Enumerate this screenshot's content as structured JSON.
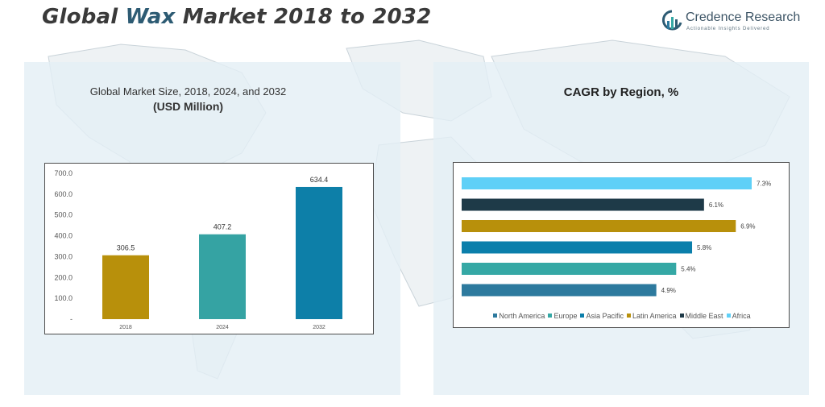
{
  "header": {
    "title_pre": "Global ",
    "title_accent": "Wax",
    "title_post": " Market 2018 to 2032"
  },
  "logo": {
    "name": "Credence Research",
    "tagline": "Actionable Insights Delivered"
  },
  "colors": {
    "title": "#3a3a3a",
    "title_accent": "#2d5b73",
    "panel_bg": "#e3eff5"
  },
  "chart_data": [
    {
      "type": "bar",
      "title": "Global Market Size, 2018, 2024, and 2032",
      "subtitle": "(USD Million)",
      "categories": [
        "2018",
        "2024",
        "2032"
      ],
      "values": [
        306.5,
        407.2,
        634.4
      ],
      "value_labels": [
        "306.5",
        "407.2",
        "634.4"
      ],
      "colors": [
        "#b8900b",
        "#35a3a3",
        "#0d7fa8"
      ],
      "ylim": [
        0,
        700
      ],
      "yticks": [
        0,
        100,
        200,
        300,
        400,
        500,
        600,
        700
      ],
      "ytick_labels": [
        "-",
        "100.0",
        "200.0",
        "300.0",
        "400.0",
        "500.0",
        "600.0",
        "700.0"
      ],
      "grid": false
    },
    {
      "type": "bar",
      "orientation": "horizontal",
      "title": "CAGR by Region, %",
      "series": [
        {
          "name": "North America",
          "value": 4.9,
          "label": "4.9%",
          "color": "#2d7a9e"
        },
        {
          "name": "Europe",
          "value": 5.4,
          "label": "5.4%",
          "color": "#35a8a5"
        },
        {
          "name": "Asia Pacific",
          "value": 5.8,
          "label": "5.8%",
          "color": "#0b7fab"
        },
        {
          "name": "Latin America",
          "value": 6.9,
          "label": "6.9%",
          "color": "#b8900b"
        },
        {
          "name": "Middle East",
          "value": 6.1,
          "label": "6.1%",
          "color": "#1e3a48"
        },
        {
          "name": "Africa",
          "value": 7.3,
          "label": "7.3%",
          "color": "#5fd0f7"
        }
      ],
      "xlim": [
        0,
        7.3
      ],
      "legend_position": "bottom",
      "grid": false
    }
  ]
}
